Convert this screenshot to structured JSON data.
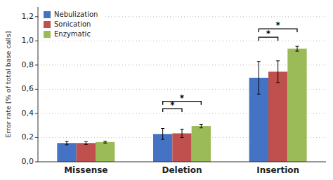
{
  "chart_data": {
    "type": "bar",
    "categories": [
      "Missense",
      "Deletion",
      "Insertion"
    ],
    "series": [
      {
        "name": "Nebulization",
        "color": "#4472C4",
        "values": [
          0.155,
          0.23,
          0.695
        ],
        "errors": [
          0.015,
          0.045,
          0.135
        ]
      },
      {
        "name": "Sonication",
        "color": "#C0504D",
        "values": [
          0.155,
          0.235,
          0.745
        ],
        "errors": [
          0.012,
          0.035,
          0.09
        ]
      },
      {
        "name": "Enzymatic",
        "color": "#9BBB59",
        "values": [
          0.163,
          0.295,
          0.935
        ],
        "errors": [
          0.008,
          0.015,
          0.02
        ]
      }
    ],
    "ylabel": "Error rate [% of total base calls]",
    "ylim": [
      0.0,
      1.28
    ],
    "yticks": [
      {
        "value": 0.0,
        "label": "0,0"
      },
      {
        "value": 0.2,
        "label": "0,2"
      },
      {
        "value": 0.4,
        "label": "0,4"
      },
      {
        "value": 0.6,
        "label": "0,6"
      },
      {
        "value": 0.8,
        "label": "0,8"
      },
      {
        "value": 1.0,
        "label": "1,0"
      },
      {
        "value": 1.2,
        "label": "1,2"
      }
    ],
    "grid": true,
    "legend": "upper left",
    "annotations": [
      {
        "text": "*",
        "category": 1,
        "between": [
          0,
          1
        ],
        "y": 0.44
      },
      {
        "text": "*",
        "category": 1,
        "between": [
          0,
          2
        ],
        "y": 0.5
      },
      {
        "text": "*",
        "category": 2,
        "between": [
          0,
          1
        ],
        "y": 1.03
      },
      {
        "text": "*",
        "category": 2,
        "between": [
          0,
          2
        ],
        "y": 1.1
      }
    ]
  }
}
